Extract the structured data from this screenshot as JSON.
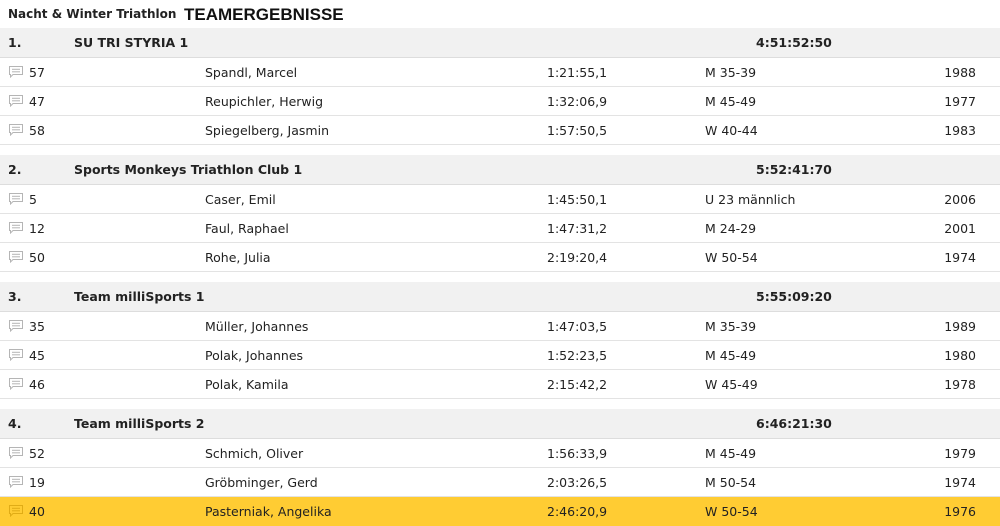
{
  "header": {
    "event": "Nacht & Winter Triathlon",
    "title": "TEAMERGEBNISSE"
  },
  "teams": [
    {
      "rank": "1.",
      "name": "SU TRI STYRIA 1",
      "time": "4:51:52:50",
      "members": [
        {
          "bib": "57",
          "name": "Spandl, Marcel",
          "time": "1:21:55,1",
          "category": "M 35-39",
          "year": "1988"
        },
        {
          "bib": "47",
          "name": "Reupichler, Herwig",
          "time": "1:32:06,9",
          "category": "M 45-49",
          "year": "1977"
        },
        {
          "bib": "58",
          "name": "Spiegelberg, Jasmin",
          "time": "1:57:50,5",
          "category": "W 40-44",
          "year": "1983"
        }
      ]
    },
    {
      "rank": "2.",
      "name": "Sports Monkeys Triathlon Club 1",
      "time": "5:52:41:70",
      "members": [
        {
          "bib": "5",
          "name": "Caser, Emil",
          "time": "1:45:50,1",
          "category": "U 23 männlich",
          "year": "2006"
        },
        {
          "bib": "12",
          "name": "Faul, Raphael",
          "time": "1:47:31,2",
          "category": "M 24-29",
          "year": "2001"
        },
        {
          "bib": "50",
          "name": "Rohe, Julia",
          "time": "2:19:20,4",
          "category": "W 50-54",
          "year": "1974"
        }
      ]
    },
    {
      "rank": "3.",
      "name": "Team milliSports 1",
      "time": "5:55:09:20",
      "members": [
        {
          "bib": "35",
          "name": "Müller, Johannes",
          "time": "1:47:03,5",
          "category": "M 35-39",
          "year": "1989"
        },
        {
          "bib": "45",
          "name": "Polak, Johannes",
          "time": "1:52:23,5",
          "category": "M 45-49",
          "year": "1980"
        },
        {
          "bib": "46",
          "name": "Polak, Kamila",
          "time": "2:15:42,2",
          "category": "W 45-49",
          "year": "1978"
        }
      ]
    },
    {
      "rank": "4.",
      "name": "Team milliSports 2",
      "time": "6:46:21:30",
      "members": [
        {
          "bib": "52",
          "name": "Schmich, Oliver",
          "time": "1:56:33,9",
          "category": "M 45-49",
          "year": "1979"
        },
        {
          "bib": "19",
          "name": "Gröbminger, Gerd",
          "time": "2:03:26,5",
          "category": "M 50-54",
          "year": "1974"
        },
        {
          "bib": "40",
          "name": "Pasterniak, Angelika",
          "time": "2:46:20,9",
          "category": "W 50-54",
          "year": "1976",
          "highlighted": true
        }
      ]
    }
  ],
  "icons": {
    "comment": "comment-icon"
  },
  "colors": {
    "highlight": "#ffcc33",
    "team_header_bg": "#f1f1f1",
    "icon": "#b5b5b5"
  }
}
